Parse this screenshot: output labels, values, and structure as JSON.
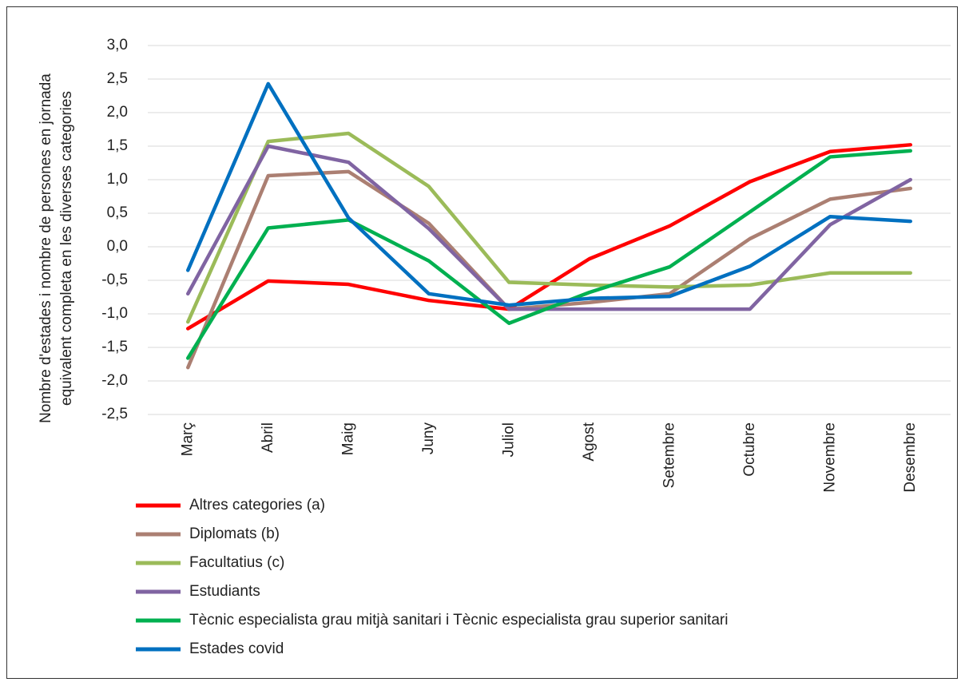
{
  "chart_data": {
    "type": "line",
    "ylabel": [
      "Nombre d'estades i nombre de persones en jornada",
      "equivalent completa en les diverses categories"
    ],
    "categories": [
      "Març",
      "Abril",
      "Maig",
      "Juny",
      "Juliol",
      "Agost",
      "Setembre",
      "Octubre",
      "Novembre",
      "Desembre"
    ],
    "series": [
      {
        "name": "Altres categories (a)",
        "color": "#ff0000",
        "values": [
          -1.22,
          -0.51,
          -0.56,
          -0.8,
          -0.93,
          -0.18,
          0.31,
          0.97,
          1.42,
          1.52
        ]
      },
      {
        "name": "Diplomats (b)",
        "color": "#ab7f72",
        "values": [
          -1.8,
          1.06,
          1.12,
          0.35,
          -0.93,
          -0.83,
          -0.7,
          0.12,
          0.71,
          0.87
        ]
      },
      {
        "name": "Facultatius (c)",
        "color": "#9bbb59",
        "values": [
          -1.12,
          1.57,
          1.69,
          0.9,
          -0.53,
          -0.57,
          -0.6,
          -0.57,
          -0.39,
          -0.39
        ]
      },
      {
        "name": "Estudiants",
        "color": "#8064a2",
        "values": [
          -0.7,
          1.5,
          1.26,
          0.27,
          -0.93,
          -0.93,
          -0.93,
          -0.93,
          0.33,
          1.0
        ]
      },
      {
        "name": "Tècnic especialista grau mitjà sanitari i Tècnic especialista grau superior sanitari",
        "color": "#00b050",
        "values": [
          -1.66,
          0.28,
          0.4,
          -0.21,
          -1.14,
          -0.68,
          -0.3,
          0.52,
          1.34,
          1.43
        ]
      },
      {
        "name": "Estades covid",
        "color": "#0070c0",
        "values": [
          -0.35,
          2.43,
          0.43,
          -0.7,
          -0.87,
          -0.77,
          -0.74,
          -0.29,
          0.45,
          0.38
        ]
      }
    ],
    "ylim": [
      -2.5,
      3
    ],
    "yticks": [
      {
        "value": -2.5,
        "label": "-2,5"
      },
      {
        "value": -2,
        "label": "-2,0"
      },
      {
        "value": -1.5,
        "label": "-1,5"
      },
      {
        "value": -1,
        "label": "-1,0"
      },
      {
        "value": -0.5,
        "label": "-0,5"
      },
      {
        "value": 0,
        "label": "0,0"
      },
      {
        "value": 0.5,
        "label": "0,5"
      },
      {
        "value": 1,
        "label": "1,0"
      },
      {
        "value": 1.5,
        "label": "1,5"
      },
      {
        "value": 2,
        "label": "2,0"
      },
      {
        "value": 2.5,
        "label": "2,5"
      },
      {
        "value": 3,
        "label": "3,0"
      }
    ],
    "grid": true
  }
}
